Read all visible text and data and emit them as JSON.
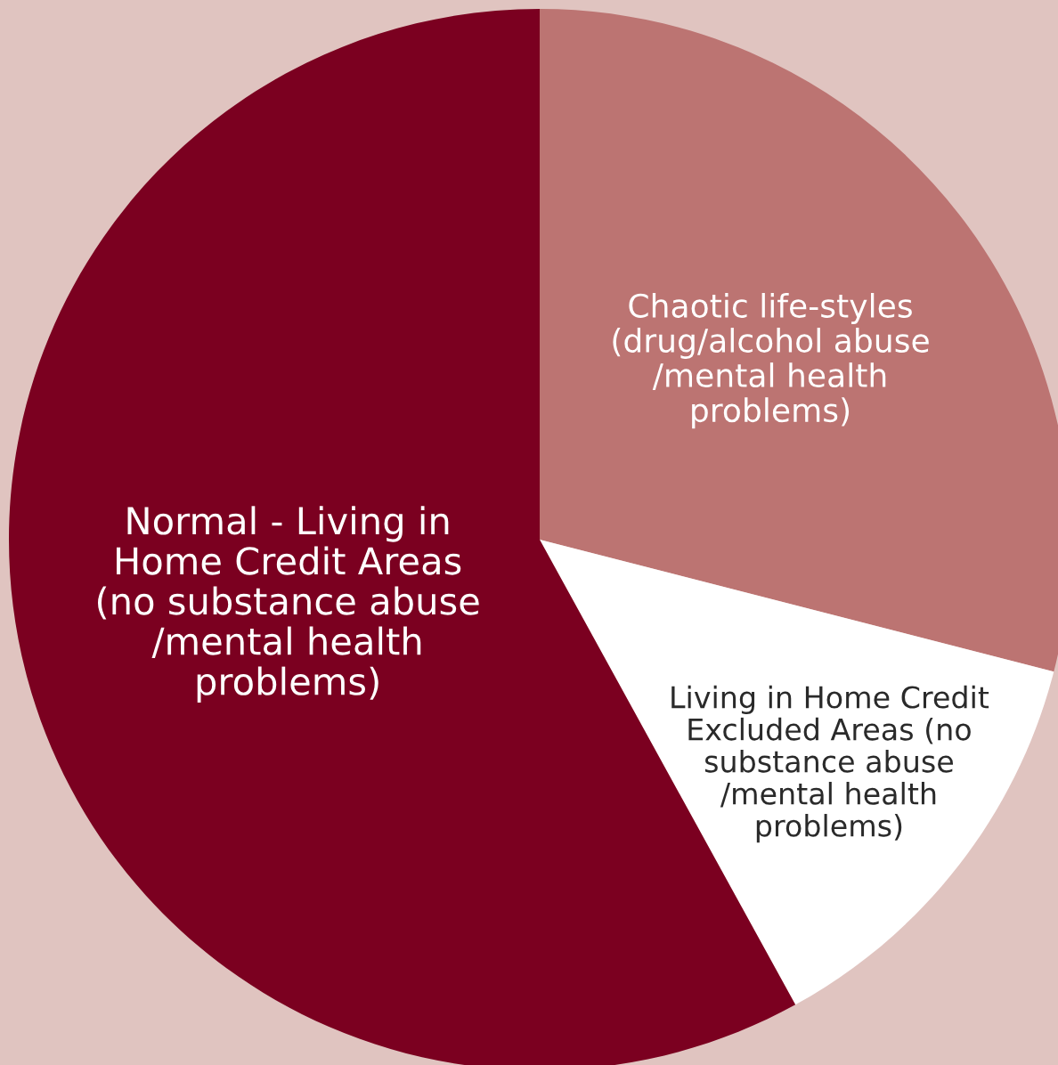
{
  "chart_data": {
    "type": "pie",
    "categories": [
      "Chaotic life-styles\n(drug/alcohol abuse\n/mental health\nproblems)",
      "Living in Home Credit\nExcluded Areas (no\nsubstance abuse\n/mental health\nproblems)",
      "Normal - Living in\nHome Credit Areas\n(no substance abuse\n/mental health\nproblems)"
    ],
    "values": [
      29,
      13,
      58
    ],
    "colors": [
      "#bc7472",
      "#ffffff",
      "#7b0020"
    ]
  }
}
